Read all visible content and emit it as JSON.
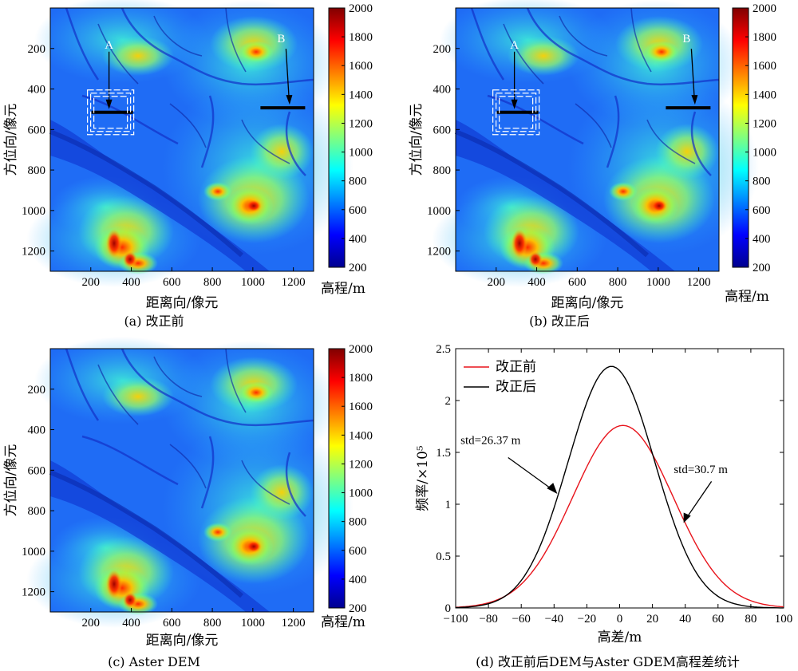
{
  "chart_data": [
    {
      "type": "heatmap",
      "caption": "(a) 改正前",
      "xlabel": "距离向/像元",
      "ylabel": "方位向/像元",
      "xticks": [
        200,
        400,
        600,
        800,
        1000,
        1200
      ],
      "yticks": [
        200,
        400,
        600,
        800,
        1000,
        1200
      ],
      "xlim": [
        0,
        1300
      ],
      "ylim": [
        1300,
        0
      ],
      "colorbar": {
        "label": "高程/m",
        "min": 200,
        "max": 2000,
        "ticks": [
          200,
          400,
          600,
          800,
          1000,
          1200,
          1400,
          1600,
          1800,
          2000
        ]
      },
      "annotations": [
        {
          "text": "A",
          "x": 290,
          "y": 200
        },
        {
          "text": "B",
          "x": 1140,
          "y": 170
        }
      ]
    },
    {
      "type": "heatmap",
      "caption": "(b) 改正后",
      "xlabel": "距离向/像元",
      "ylabel": "方位向/像元",
      "xticks": [
        200,
        400,
        600,
        800,
        1000,
        1200
      ],
      "yticks": [
        200,
        400,
        600,
        800,
        1000,
        1200
      ],
      "xlim": [
        0,
        1300
      ],
      "ylim": [
        1300,
        0
      ],
      "colorbar": {
        "label": "高程/m",
        "min": 200,
        "max": 2000,
        "ticks": [
          200,
          400,
          600,
          800,
          1000,
          1200,
          1400,
          1600,
          1800,
          2000
        ]
      },
      "annotations": [
        {
          "text": "A",
          "x": 290,
          "y": 200
        },
        {
          "text": "B",
          "x": 1140,
          "y": 170
        }
      ]
    },
    {
      "type": "heatmap",
      "caption": "(c) Aster DEM",
      "xlabel": "距离向/像元",
      "ylabel": "方位向/像元",
      "xticks": [
        200,
        400,
        600,
        800,
        1000,
        1200
      ],
      "yticks": [
        200,
        400,
        600,
        800,
        1000,
        1200
      ],
      "xlim": [
        0,
        1300
      ],
      "ylim": [
        1300,
        0
      ],
      "colorbar": {
        "label": "高程/m",
        "min": 200,
        "max": 2000,
        "ticks": [
          200,
          400,
          600,
          800,
          1000,
          1200,
          1400,
          1600,
          1800,
          2000
        ]
      }
    },
    {
      "type": "line",
      "caption": "(d) 改正前后DEM与Aster GDEM高程差统计",
      "xlabel": "高差/m",
      "ylabel": "频率/×10⁵",
      "xlim": [
        -100,
        100
      ],
      "ylim": [
        0,
        2.5
      ],
      "xticks": [
        -100,
        -80,
        -60,
        -40,
        -20,
        0,
        20,
        40,
        60,
        80,
        100
      ],
      "yticks": [
        0,
        0.5,
        1,
        1.5,
        2,
        2.5
      ],
      "legend_position": "top-left",
      "series": [
        {
          "name": "改正前",
          "color": "#e8141c",
          "mean": 2,
          "std": 30.7,
          "peak": 1.76
        },
        {
          "name": "改正后",
          "color": "#000000",
          "mean": -5,
          "std": 26.37,
          "peak": 2.33
        }
      ],
      "annotations": [
        {
          "text": "std=26.37 m",
          "x": -36,
          "y": 1.15
        },
        {
          "text": "std=30.7 m",
          "x": 42,
          "y": 0.82
        }
      ]
    }
  ]
}
